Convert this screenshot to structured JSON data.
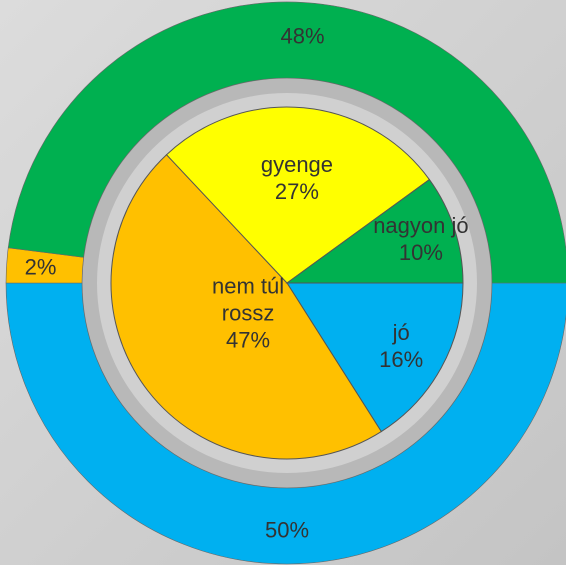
{
  "chart_data": [
    {
      "type": "donut",
      "values": [
        50,
        2,
        48
      ],
      "value_labels": [
        "50%",
        "2%",
        "48%"
      ],
      "colors": [
        "#00b0f0",
        "#ffc000",
        "#00b050"
      ]
    },
    {
      "type": "pie",
      "categories": [
        "jó",
        "nem túl rossz",
        "gyenge",
        "nagyon jó"
      ],
      "values": [
        16,
        47,
        27,
        10
      ],
      "value_labels": [
        "16%",
        "47%",
        "27%",
        "10%"
      ],
      "colors": [
        "#00b0f0",
        "#ffc000",
        "#ffff00",
        "#00b050"
      ]
    }
  ]
}
